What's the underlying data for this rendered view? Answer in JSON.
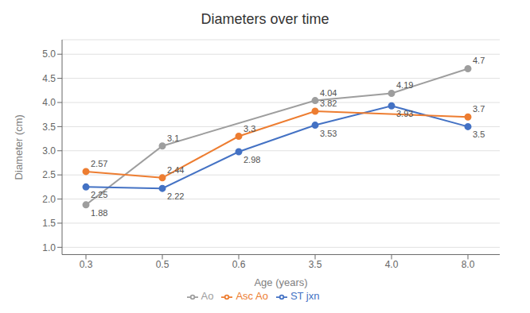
{
  "chart_data": {
    "type": "line",
    "title": "Diameters over time",
    "xlabel": "Age (years)",
    "ylabel": "Diameter (cm)",
    "categories": [
      "0.3",
      "0.5",
      "0.6",
      "3.5",
      "4.0",
      "8.0"
    ],
    "series": [
      {
        "name": "Ao",
        "color": "#9E9E9E",
        "values": [
          1.88,
          3.1,
          null,
          4.04,
          4.19,
          4.7
        ],
        "marker": "circle"
      },
      {
        "name": "ST jxn",
        "color": "#4472C4",
        "values": [
          2.25,
          2.22,
          2.98,
          3.53,
          3.93,
          3.5
        ],
        "marker": "circle"
      },
      {
        "name": "Asc Ao",
        "color": "#ED7D31",
        "values": [
          2.57,
          2.44,
          3.3,
          3.82,
          null,
          3.7
        ],
        "marker": "circle"
      }
    ],
    "ylim": [
      0.85,
      5.3
    ],
    "yticks": [
      {
        "value": 1,
        "label": "1.0"
      },
      1.5,
      {
        "value": 2,
        "label": "2.0"
      },
      2.5,
      {
        "value": 3,
        "label": "3.0"
      },
      3.5,
      {
        "value": 4,
        "label": "4.0"
      },
      4.5,
      {
        "value": 5,
        "label": "5.0"
      }
    ],
    "grid": true,
    "legend": "bottom",
    "data_labels": true
  }
}
